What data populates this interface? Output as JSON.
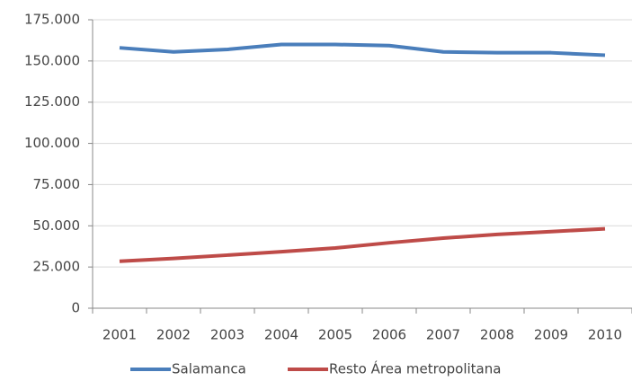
{
  "chart_data": {
    "type": "line",
    "categories": [
      "2001",
      "2002",
      "2003",
      "2004",
      "2005",
      "2006",
      "2007",
      "2008",
      "2009",
      "2010"
    ],
    "series": [
      {
        "name": "Salamanca",
        "color": "#4a7ebb",
        "values": [
          158000,
          155500,
          157000,
          160000,
          160000,
          159300,
          155500,
          155000,
          155000,
          153500
        ]
      },
      {
        "name": "Resto Área metropolitana",
        "color": "#be4b48",
        "values": [
          28500,
          30200,
          32200,
          34300,
          36500,
          39700,
          42500,
          44800,
          46500,
          48200
        ]
      }
    ],
    "ylim": [
      0,
      175000
    ],
    "yticks": [
      0,
      {
        "value": 25000,
        "label": "25.000"
      },
      {
        "value": 50000,
        "label": "50.000"
      },
      {
        "value": 75000,
        "label": "75.000"
      },
      {
        "value": 100000,
        "label": "100.000"
      },
      {
        "value": 125000,
        "label": "125.000"
      },
      {
        "value": 150000,
        "label": "150.000"
      },
      {
        "value": 175000,
        "label": "175.000"
      }
    ],
    "grid": true,
    "legend": "bottom"
  }
}
